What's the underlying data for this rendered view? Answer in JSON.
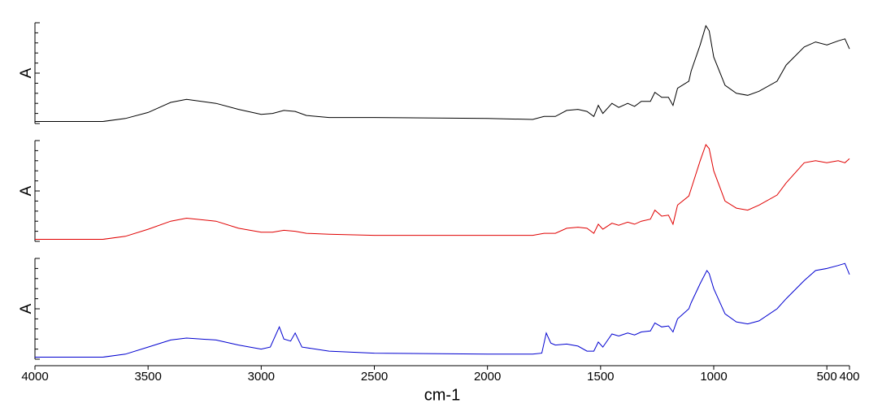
{
  "chart_data": [
    {
      "type": "line",
      "ylabel": "A",
      "color": "#000000",
      "x": [
        4000,
        3700,
        3600,
        3500,
        3400,
        3330,
        3200,
        3100,
        3000,
        2950,
        2900,
        2850,
        2800,
        2700,
        2500,
        2000,
        1800,
        1750,
        1700,
        1650,
        1600,
        1560,
        1530,
        1510,
        1490,
        1450,
        1420,
        1380,
        1350,
        1320,
        1280,
        1260,
        1230,
        1200,
        1180,
        1160,
        1110,
        1100,
        1060,
        1035,
        1020,
        1000,
        950,
        900,
        850,
        800,
        720,
        680,
        600,
        550,
        500,
        450,
        420,
        400
      ],
      "values": [
        0.02,
        0.02,
        0.05,
        0.11,
        0.21,
        0.24,
        0.2,
        0.14,
        0.09,
        0.1,
        0.13,
        0.12,
        0.08,
        0.06,
        0.06,
        0.05,
        0.04,
        0.07,
        0.07,
        0.13,
        0.14,
        0.12,
        0.07,
        0.18,
        0.1,
        0.2,
        0.16,
        0.2,
        0.17,
        0.22,
        0.22,
        0.31,
        0.26,
        0.26,
        0.18,
        0.35,
        0.42,
        0.52,
        0.78,
        0.97,
        0.92,
        0.66,
        0.38,
        0.3,
        0.28,
        0.32,
        0.42,
        0.58,
        0.76,
        0.81,
        0.78,
        0.82,
        0.84,
        0.74
      ],
      "xlim": [
        4000,
        400
      ],
      "ylim": [
        0,
        1
      ],
      "yticks": [
        0,
        0.1,
        0.2,
        0.3,
        0.4,
        0.5,
        0.6,
        0.7,
        0.8,
        0.9,
        1
      ]
    },
    {
      "type": "line",
      "ylabel": "A",
      "color": "#e00000",
      "x": [
        4000,
        3700,
        3600,
        3500,
        3400,
        3330,
        3200,
        3100,
        3000,
        2950,
        2900,
        2850,
        2800,
        2700,
        2500,
        2000,
        1800,
        1750,
        1700,
        1650,
        1600,
        1560,
        1530,
        1510,
        1490,
        1450,
        1420,
        1380,
        1350,
        1320,
        1280,
        1260,
        1230,
        1200,
        1180,
        1160,
        1110,
        1100,
        1060,
        1035,
        1020,
        1000,
        950,
        900,
        850,
        800,
        720,
        680,
        600,
        550,
        500,
        450,
        420,
        400
      ],
      "values": [
        0.02,
        0.02,
        0.05,
        0.12,
        0.2,
        0.23,
        0.2,
        0.13,
        0.09,
        0.09,
        0.11,
        0.1,
        0.08,
        0.07,
        0.06,
        0.06,
        0.06,
        0.08,
        0.08,
        0.13,
        0.14,
        0.13,
        0.08,
        0.17,
        0.12,
        0.18,
        0.16,
        0.19,
        0.17,
        0.2,
        0.22,
        0.31,
        0.25,
        0.26,
        0.17,
        0.36,
        0.45,
        0.52,
        0.8,
        0.96,
        0.92,
        0.7,
        0.4,
        0.33,
        0.31,
        0.36,
        0.46,
        0.58,
        0.78,
        0.8,
        0.78,
        0.8,
        0.78,
        0.82
      ],
      "xlim": [
        4000,
        400
      ],
      "ylim": [
        0,
        1
      ],
      "yticks": [
        0,
        0.1,
        0.2,
        0.3,
        0.4,
        0.5,
        0.6,
        0.7,
        0.8,
        0.9,
        1
      ]
    },
    {
      "type": "line",
      "ylabel": "A",
      "xlabel": "cm-1",
      "color": "#0000d0",
      "x": [
        4000,
        3700,
        3600,
        3500,
        3400,
        3330,
        3200,
        3100,
        3000,
        2960,
        2920,
        2900,
        2870,
        2850,
        2820,
        2700,
        2500,
        2000,
        1800,
        1760,
        1740,
        1720,
        1700,
        1650,
        1600,
        1560,
        1530,
        1510,
        1490,
        1450,
        1420,
        1380,
        1350,
        1320,
        1280,
        1260,
        1230,
        1200,
        1180,
        1160,
        1110,
        1100,
        1060,
        1030,
        1020,
        1000,
        950,
        900,
        850,
        800,
        720,
        680,
        600,
        550,
        500,
        450,
        420,
        400
      ],
      "values": [
        0.02,
        0.02,
        0.05,
        0.12,
        0.19,
        0.21,
        0.19,
        0.14,
        0.1,
        0.12,
        0.32,
        0.2,
        0.18,
        0.26,
        0.12,
        0.08,
        0.06,
        0.05,
        0.05,
        0.06,
        0.26,
        0.16,
        0.14,
        0.15,
        0.13,
        0.08,
        0.08,
        0.17,
        0.12,
        0.25,
        0.23,
        0.26,
        0.24,
        0.27,
        0.28,
        0.36,
        0.32,
        0.33,
        0.27,
        0.4,
        0.5,
        0.56,
        0.75,
        0.88,
        0.85,
        0.7,
        0.45,
        0.37,
        0.35,
        0.38,
        0.5,
        0.6,
        0.78,
        0.88,
        0.9,
        0.93,
        0.95,
        0.84
      ],
      "xlim": [
        4000,
        400
      ],
      "ylim": [
        0,
        1
      ],
      "yticks": [
        0,
        0.1,
        0.2,
        0.3,
        0.4,
        0.5,
        0.6,
        0.7,
        0.8,
        0.9,
        1
      ],
      "xticks": [
        4000,
        3500,
        3000,
        2500,
        2000,
        1500,
        1000,
        500,
        400
      ]
    }
  ]
}
